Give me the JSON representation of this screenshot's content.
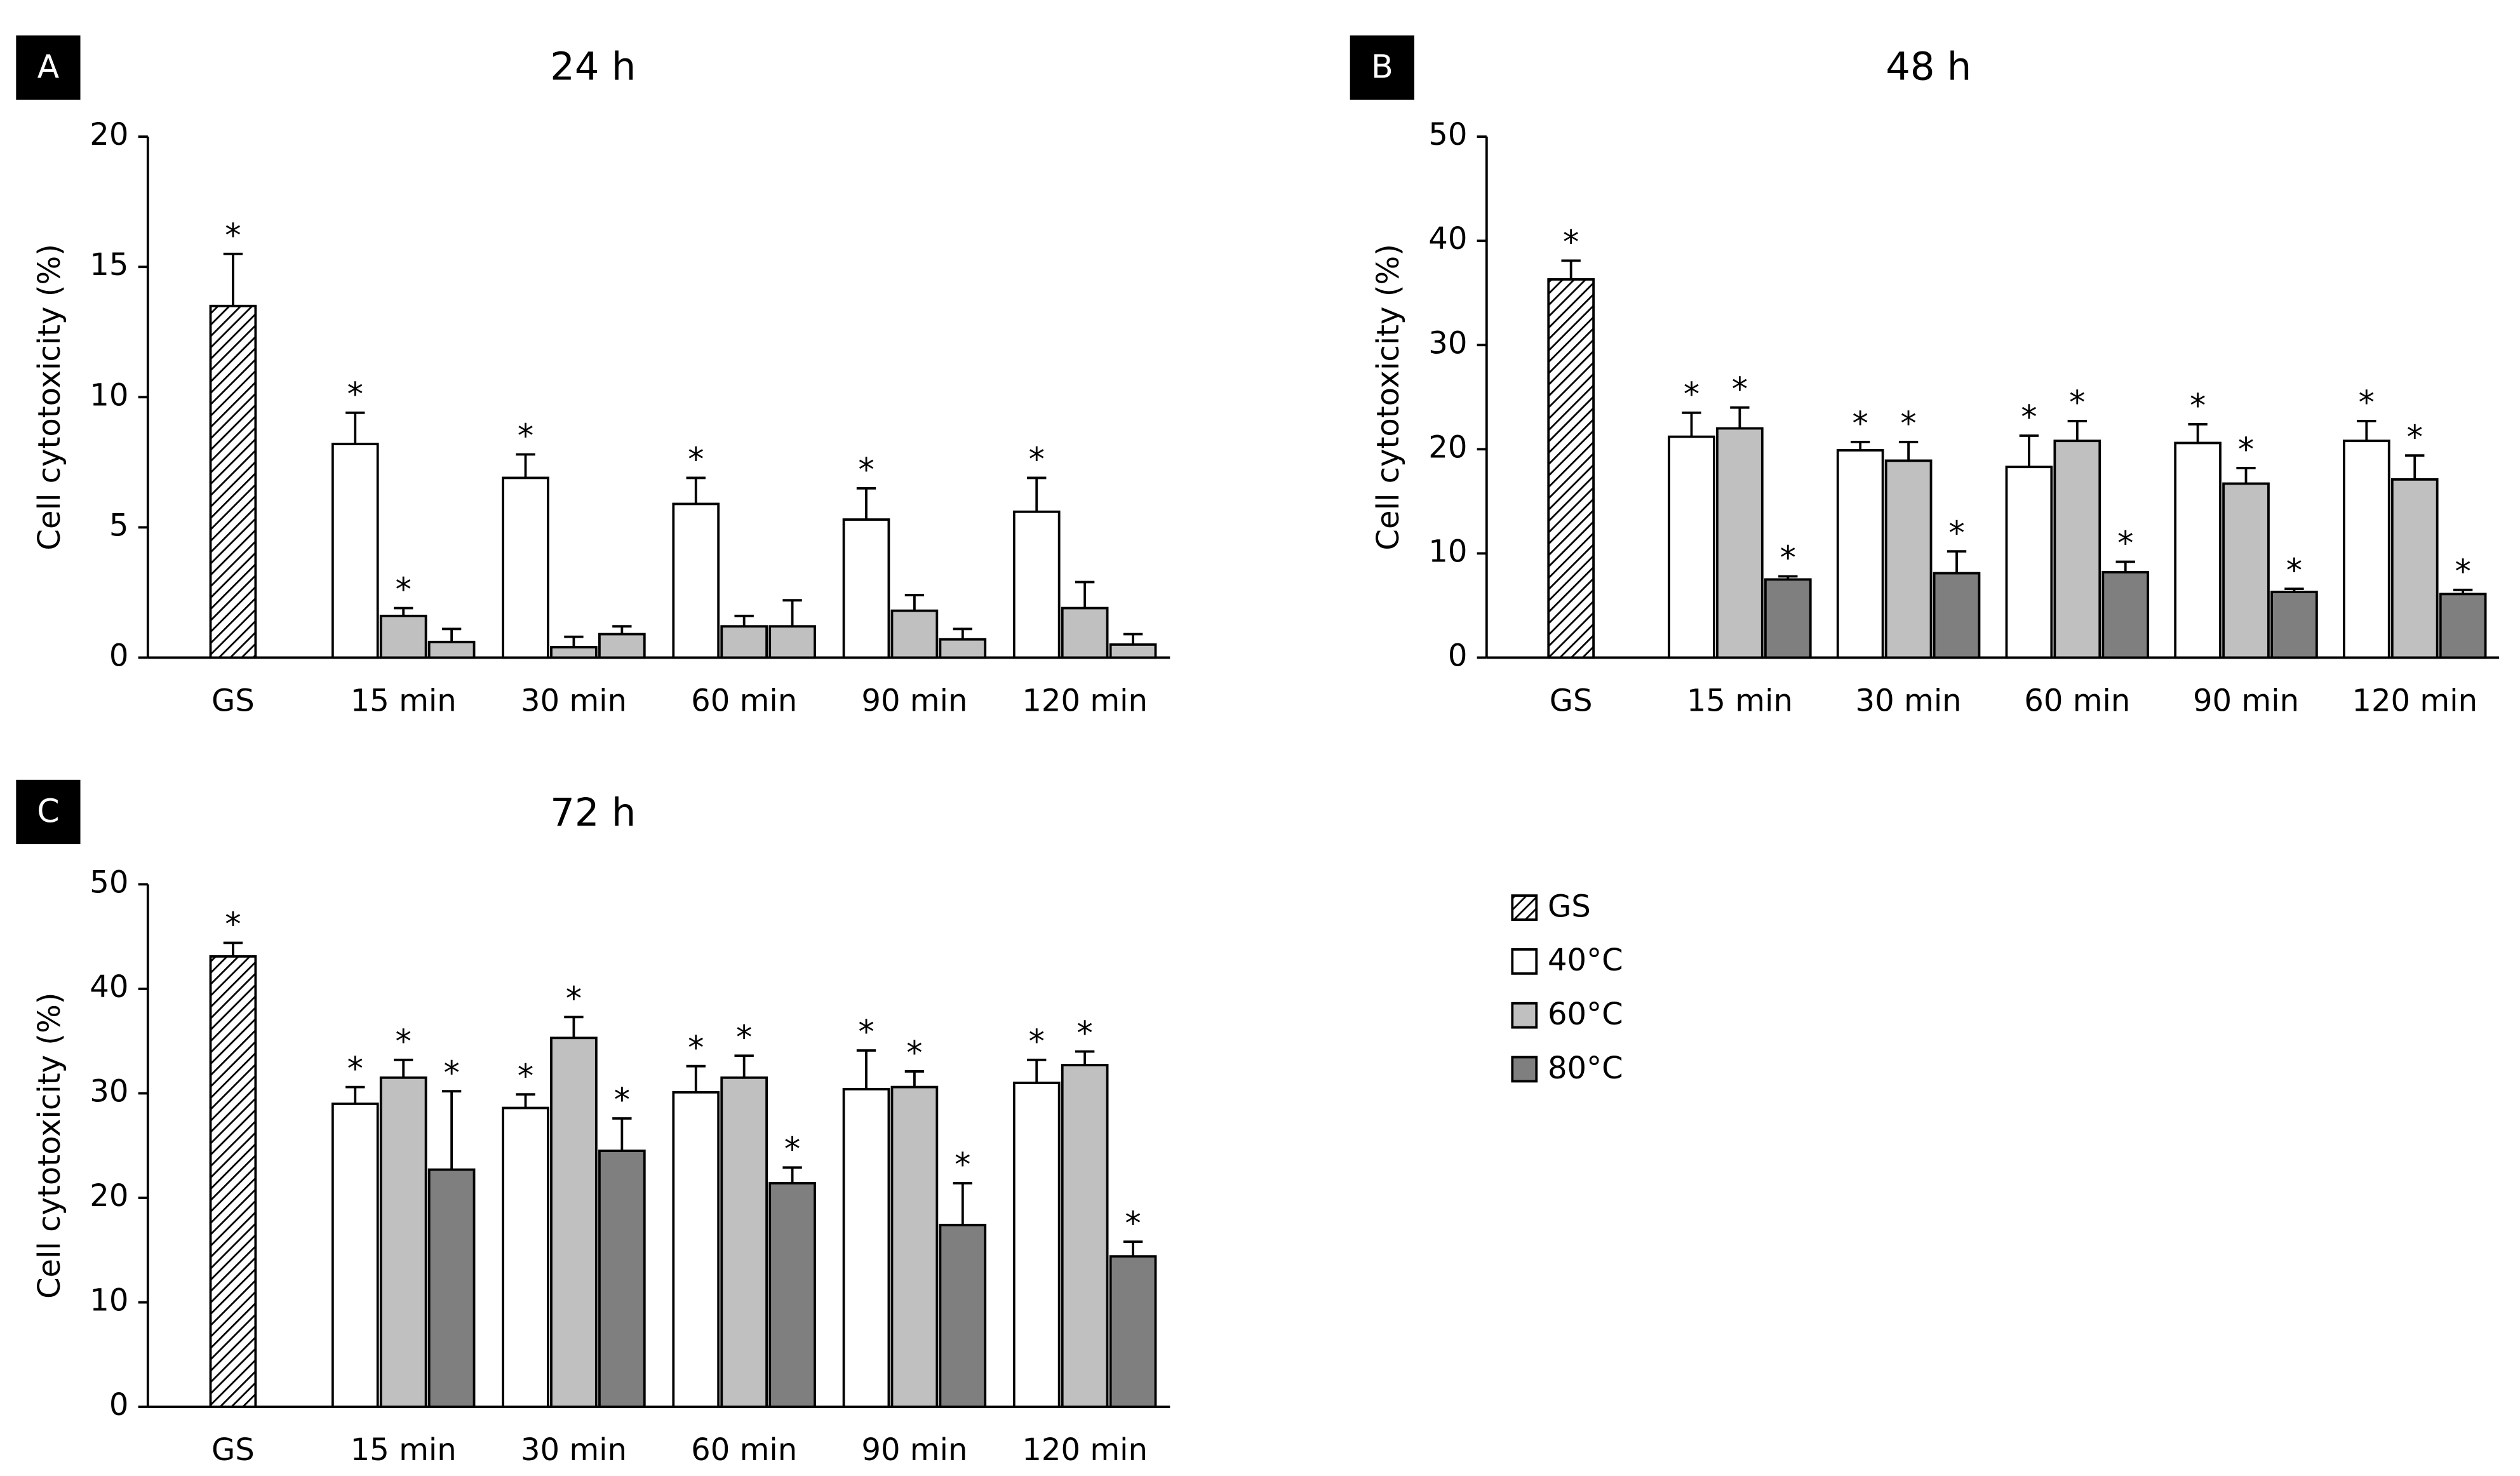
{
  "chart_data": [
    {
      "type": "bar",
      "panel_label": "A",
      "title": "24 h",
      "y_label": "Cell cytotoxicity (%)",
      "annotation": "*",
      "categories": [
        "GS",
        "15 min",
        "30 min",
        "60 min",
        "90 min",
        "120 min"
      ],
      "ylim": [
        0,
        20
      ],
      "yticks": [
        0,
        5,
        10,
        15,
        20
      ],
      "series": [
        {
          "name": "GS",
          "color": "#ffffff",
          "pattern": "hatch",
          "values": [
            13.5,
            null,
            null,
            null,
            null,
            null
          ],
          "errors": [
            2.0,
            null,
            null,
            null,
            null,
            null
          ],
          "significant": [
            true,
            false,
            false,
            false,
            false,
            false
          ]
        },
        {
          "name": "40°C",
          "color": "#ffffff",
          "values": [
            null,
            8.2,
            6.9,
            5.9,
            5.3,
            5.6
          ],
          "errors": [
            null,
            1.2,
            0.9,
            1.0,
            1.2,
            1.3
          ],
          "significant": [
            false,
            true,
            true,
            true,
            true,
            true
          ]
        },
        {
          "name": "60°C",
          "color": "#c0c0c0",
          "values": [
            null,
            1.6,
            0.4,
            1.2,
            1.8,
            1.9
          ],
          "errors": [
            null,
            0.3,
            0.4,
            0.4,
            0.6,
            1.0
          ],
          "significant": [
            false,
            true,
            false,
            false,
            false,
            false
          ]
        },
        {
          "name": "80°C",
          "color": "#c0c0c0",
          "values": [
            null,
            0.6,
            0.9,
            1.2,
            0.7,
            0.5
          ],
          "errors": [
            null,
            0.5,
            0.3,
            1.0,
            0.4,
            0.4
          ],
          "significant": [
            false,
            false,
            false,
            false,
            false,
            false
          ]
        }
      ]
    },
    {
      "type": "bar",
      "panel_label": "B",
      "title": "48 h",
      "y_label": "Cell cytotoxicity (%)",
      "annotation": "*",
      "categories": [
        "GS",
        "15 min",
        "30 min",
        "60 min",
        "90 min",
        "120 min"
      ],
      "ylim": [
        0,
        50
      ],
      "yticks": [
        0,
        10,
        20,
        30,
        40,
        50
      ],
      "series": [
        {
          "name": "GS",
          "color": "#ffffff",
          "pattern": "hatch",
          "values": [
            36.3,
            null,
            null,
            null,
            null,
            null
          ],
          "errors": [
            1.8,
            null,
            null,
            null,
            null,
            null
          ],
          "significant": [
            true,
            false,
            false,
            false,
            false,
            false
          ]
        },
        {
          "name": "40°C",
          "color": "#ffffff",
          "values": [
            null,
            21.2,
            19.9,
            18.3,
            20.6,
            20.8
          ],
          "errors": [
            null,
            2.3,
            0.8,
            3.0,
            1.8,
            1.9
          ],
          "significant": [
            false,
            true,
            true,
            true,
            true,
            true
          ]
        },
        {
          "name": "60°C",
          "color": "#c0c0c0",
          "values": [
            null,
            22.0,
            18.9,
            20.8,
            16.7,
            17.1
          ],
          "errors": [
            null,
            2.0,
            1.8,
            1.9,
            1.5,
            2.3
          ],
          "significant": [
            false,
            true,
            true,
            true,
            true,
            true
          ]
        },
        {
          "name": "80°C",
          "color": "#7f7f7f",
          "values": [
            null,
            7.5,
            8.1,
            8.2,
            6.3,
            6.1
          ],
          "errors": [
            null,
            0.3,
            2.1,
            1.0,
            0.3,
            0.4
          ],
          "significant": [
            false,
            true,
            true,
            true,
            true,
            true
          ]
        }
      ]
    },
    {
      "type": "bar",
      "panel_label": "C",
      "title": "72 h",
      "y_label": "Cell cytotoxicity (%)",
      "annotation": "*",
      "categories": [
        "GS",
        "15 min",
        "30 min",
        "60 min",
        "90 min",
        "120 min"
      ],
      "ylim": [
        0,
        50
      ],
      "yticks": [
        0,
        10,
        20,
        30,
        40,
        50
      ],
      "series": [
        {
          "name": "GS",
          "color": "#ffffff",
          "pattern": "hatch",
          "values": [
            43.1,
            null,
            null,
            null,
            null,
            null
          ],
          "errors": [
            1.3,
            null,
            null,
            null,
            null,
            null
          ],
          "significant": [
            true,
            false,
            false,
            false,
            false,
            false
          ]
        },
        {
          "name": "40°C",
          "color": "#ffffff",
          "values": [
            null,
            29.0,
            28.6,
            30.1,
            30.4,
            31.0
          ],
          "errors": [
            null,
            1.6,
            1.3,
            2.5,
            3.7,
            2.2
          ],
          "significant": [
            false,
            true,
            true,
            true,
            true,
            true
          ]
        },
        {
          "name": "60°C",
          "color": "#c0c0c0",
          "values": [
            null,
            31.5,
            35.3,
            31.5,
            30.6,
            32.7
          ],
          "errors": [
            null,
            1.7,
            2.0,
            2.1,
            1.5,
            1.3
          ],
          "significant": [
            false,
            true,
            true,
            true,
            true,
            true
          ]
        },
        {
          "name": "80°C",
          "color": "#7f7f7f",
          "values": [
            null,
            22.7,
            24.5,
            21.4,
            17.4,
            14.4
          ],
          "errors": [
            null,
            7.5,
            3.1,
            1.5,
            4.0,
            1.4
          ],
          "significant": [
            false,
            true,
            true,
            true,
            true,
            true
          ]
        }
      ]
    }
  ]
}
